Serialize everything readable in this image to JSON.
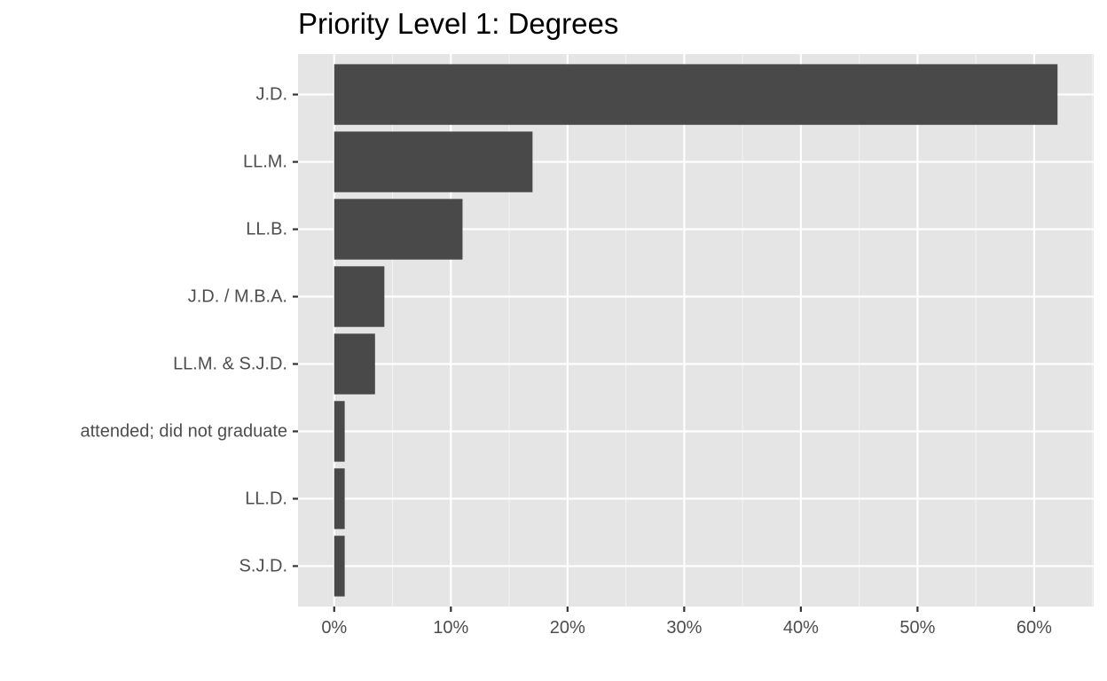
{
  "chart_data": {
    "type": "bar",
    "orientation": "horizontal",
    "title": "Priority Level 1: Degrees",
    "xlabel": "",
    "ylabel": "",
    "categories": [
      "J.D.",
      "LL.M.",
      "LL.B.",
      "J.D. / M.B.A.",
      "LL.M. & S.J.D.",
      "attended; did not graduate",
      "LL.D.",
      "S.J.D."
    ],
    "values": [
      62.0,
      17.0,
      11.0,
      4.3,
      3.5,
      0.9,
      0.9,
      0.9
    ],
    "value_format": "percent",
    "xlim": [
      -3.1,
      65.1
    ],
    "x_ticks": [
      0,
      10,
      20,
      30,
      40,
      50,
      60
    ],
    "x_tick_labels": [
      "0%",
      "10%",
      "20%",
      "30%",
      "40%",
      "50%",
      "60%"
    ],
    "grid": true,
    "legend": "none",
    "colors": {
      "bar": "#494949",
      "panel_background": "#e5e5e5",
      "grid_major": "#ffffff",
      "grid_minor": "#f2f2f2",
      "tick_text": "#4d4d4d",
      "tick_mark": "#333333",
      "title": "#000000"
    }
  }
}
